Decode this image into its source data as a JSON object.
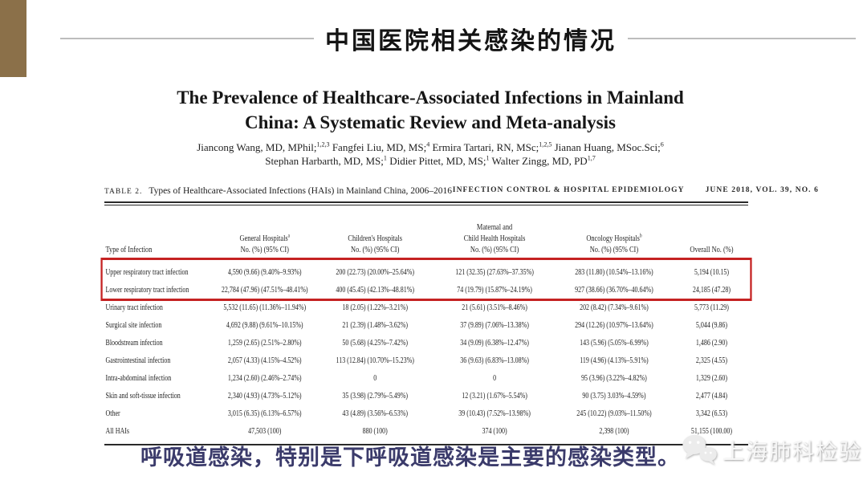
{
  "slide_header": {
    "title": "中国医院相关感染的情况"
  },
  "paper": {
    "title_line1": "The Prevalence of Healthcare-Associated Infections in Mainland",
    "title_line2": "China: A Systematic Review and Meta-analysis",
    "authors": [
      [
        {
          "t": "Jiancong Wang, MD, MPhil;"
        },
        {
          "s": "1,2,3"
        },
        {
          "t": " Fangfei Liu, MD, MS;"
        },
        {
          "s": "4"
        },
        {
          "t": " Ermira Tartari, RN, MSc;"
        },
        {
          "s": "1,2,5"
        },
        {
          "t": " Jianan Huang, MSoc.Sci;"
        },
        {
          "s": "6"
        }
      ],
      [
        {
          "t": "Stephan Harbarth, MD, MS;"
        },
        {
          "s": "1"
        },
        {
          "t": " Didier Pittet, MD, MS;"
        },
        {
          "s": "1"
        },
        {
          "t": " Walter Zingg, MD, PD"
        },
        {
          "s": "1,7"
        }
      ]
    ],
    "table_caption": {
      "label": "TABLE 2.",
      "text": "Types of Healthcare-Associated Infections (HAIs) in Mainland China, 2006–2016"
    },
    "journal_header": {
      "name": "INFECTION CONTROL & HOSPITAL EPIDEMIOLOGY",
      "issue": "JUNE 2018, VOL. 39, NO. 6"
    },
    "table": {
      "columns": [
        {
          "line1": "Type of Infection"
        },
        {
          "line1": "General Hospitals",
          "sup": "a",
          "line2": "No. (%) (95% CI)"
        },
        {
          "line1": "Children's Hospitals",
          "line2": "No. (%) (95% CI)"
        },
        {
          "line0": "Maternal and",
          "line1": "Child Health Hospitals",
          "line2": "No. (%) (95% CI)"
        },
        {
          "line1": "Oncology Hospitals",
          "sup": "b",
          "line2": "No. (%) (95% CI)"
        },
        {
          "line1": "Overall No. (%)"
        }
      ],
      "rows": [
        [
          "Upper respiratory tract infection",
          "4,590 (9.66) (9.40%–9.93%)",
          "200 (22.73) (20.00%–25.64%)",
          "121 (32.35) (27.63%–37.35%)",
          "283 (11.80) (10.54%–13.16%)",
          "5,194 (10.15)"
        ],
        [
          "Lower respiratory tract infection",
          "22,784 (47.96) (47.51%–48.41%)",
          "400 (45.45) (42.13%–48.81%)",
          "74 (19.79) (15.87%–24.19%)",
          "927 (38.66) (36.70%–40.64%)",
          "24,185 (47.28)"
        ],
        [
          "Urinary tract infection",
          "5,532 (11.65) (11.36%–11.94%)",
          "18 (2.05) (1.22%–3.21%)",
          "21 (5.61) (3.51%–8.46%)",
          "202 (8.42) (7.34%–9.61%)",
          "5,773 (11.29)"
        ],
        [
          "Surgical site infection",
          "4,692 (9.88) (9.61%–10.15%)",
          "21 (2.39) (1.48%–3.62%)",
          "37 (9.89) (7.06%–13.38%)",
          "294 (12.26) (10.97%–13.64%)",
          "5,044 (9.86)"
        ],
        [
          "Bloodstream infection",
          "1,259 (2.65) (2.51%–2.80%)",
          "50 (5.68) (4.25%–7.42%)",
          "34 (9.09) (6.38%–12.47%)",
          "143 (5.96) (5.05%–6.99%)",
          "1,486 (2.90)"
        ],
        [
          "Gastrointestinal infection",
          "2,057 (4.33) (4.15%–4.52%)",
          "113 (12.84) (10.70%–15.23%)",
          "36 (9.63) (6.83%–13.08%)",
          "119 (4.96) (4.13%–5.91%)",
          "2,325 (4.55)"
        ],
        [
          "Intra-abdominal infection",
          "1,234 (2.60) (2.46%–2.74%)",
          "0",
          "0",
          "95 (3.96) (3.22%–4.82%)",
          "1,329 (2.60)"
        ],
        [
          "Skin and soft-tissue infection",
          "2,340 (4.93) (4.73%–5.12%)",
          "35 (3.98) (2.79%–5.49%)",
          "12 (3.21) (1.67%–5.54%)",
          "90 (3.75) 3.03%–4.59%)",
          "2,477 (4.84)"
        ],
        [
          "Other",
          "3,015 (6.35) (6.13%–6.57%)",
          "43 (4.89) (3.56%–6.53%)",
          "39 (10.43) (7.52%–13.98%)",
          "245 (10.22) (9.03%–11.50%)",
          "3,342 (6.53)"
        ],
        [
          "All HAIs",
          "47,503 (100)",
          "880 (100)",
          "374 (100)",
          "2,398 (100)",
          "51,155 (100.00)"
        ]
      ],
      "highlight_row_indices": [
        0,
        1
      ],
      "highlight_color": "#c52222"
    }
  },
  "footer": {
    "text": "呼吸道感染，特别是下呼吸道感染是主要的感染类型。",
    "color": "#3b3b6b"
  },
  "watermark": {
    "text": "上海肺科检验",
    "logo": "wechat-icon"
  },
  "accent_colors": {
    "corner_brown": "#8b7049",
    "header_line_gray": "#bdbdbd"
  }
}
